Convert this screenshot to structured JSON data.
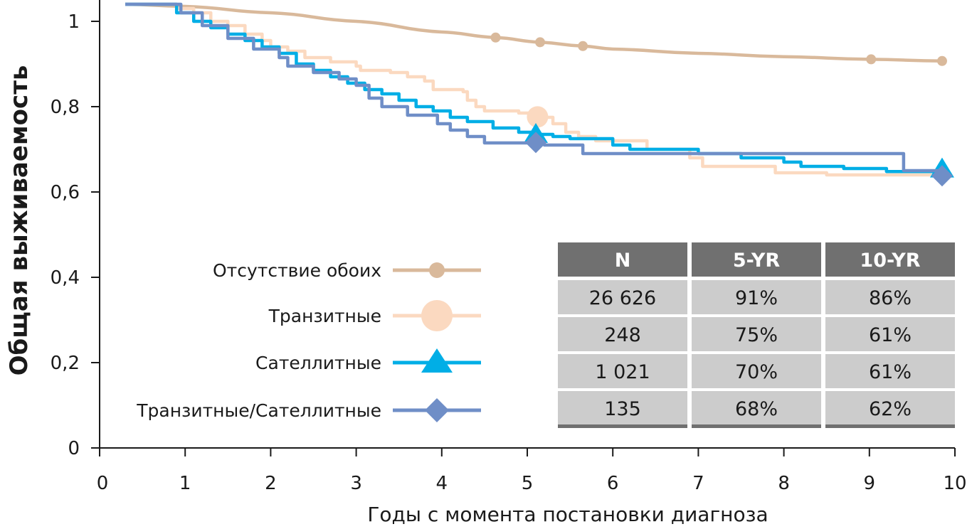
{
  "chart_data": {
    "type": "line",
    "title": "",
    "xlabel": "Годы с момента постановки диагноза",
    "ylabel": "Общая выживаемость",
    "xlim": [
      0,
      10
    ],
    "ylim": [
      0,
      1.03
    ],
    "x_ticks": [
      "0",
      "1",
      "2",
      "3",
      "4",
      "5",
      "6",
      "7",
      "8",
      "9",
      "10"
    ],
    "y_ticks": [
      {
        "value": 0,
        "label": "0"
      },
      {
        "value": 0.2,
        "label": "0,2"
      },
      {
        "value": 0.4,
        "label": "0,4"
      },
      {
        "value": 0.6,
        "label": "0,6"
      },
      {
        "value": 0.8,
        "label": "0,8"
      },
      {
        "value": 1,
        "label": "1"
      }
    ],
    "legend_position": "bottom-left",
    "series": [
      {
        "name": "Отсутствие обоих",
        "color": "#d9b99b",
        "marker": "circle-small",
        "step": false,
        "points": [
          [
            0.3,
            1.04
          ],
          [
            1,
            1.035
          ],
          [
            2,
            1.02
          ],
          [
            3,
            1.0
          ],
          [
            4,
            0.975
          ],
          [
            4.63,
            0.962
          ],
          [
            5.15,
            0.951
          ],
          [
            5.65,
            0.942
          ],
          [
            6,
            0.935
          ],
          [
            7,
            0.925
          ],
          [
            8,
            0.917
          ],
          [
            9,
            0.911
          ],
          [
            9.85,
            0.907
          ]
        ],
        "marker_points": [
          [
            4.63,
            0.962
          ],
          [
            5.15,
            0.951
          ],
          [
            5.65,
            0.942
          ],
          [
            9.02,
            0.911
          ],
          [
            9.85,
            0.907
          ]
        ]
      },
      {
        "name": "Транзитные",
        "color": "#fbd9c0",
        "marker": "circle-large",
        "step": true,
        "points": [
          [
            0.3,
            1.04
          ],
          [
            0.8,
            1.04
          ],
          [
            0.9,
            1.03
          ],
          [
            1.1,
            1.02
          ],
          [
            1.3,
            1.0
          ],
          [
            1.5,
            0.99
          ],
          [
            1.7,
            0.97
          ],
          [
            1.9,
            0.955
          ],
          [
            2.0,
            0.94
          ],
          [
            2.2,
            0.93
          ],
          [
            2.4,
            0.915
          ],
          [
            2.7,
            0.905
          ],
          [
            3.0,
            0.895
          ],
          [
            3.05,
            0.885
          ],
          [
            3.4,
            0.88
          ],
          [
            3.6,
            0.87
          ],
          [
            3.8,
            0.86
          ],
          [
            3.9,
            0.84
          ],
          [
            4.25,
            0.835
          ],
          [
            4.3,
            0.815
          ],
          [
            4.4,
            0.8
          ],
          [
            4.5,
            0.79
          ],
          [
            4.9,
            0.785
          ],
          [
            5.15,
            0.775
          ],
          [
            5.3,
            0.76
          ],
          [
            5.45,
            0.74
          ],
          [
            5.6,
            0.73
          ],
          [
            5.8,
            0.72
          ],
          [
            6.4,
            0.7
          ],
          [
            6.9,
            0.68
          ],
          [
            7.05,
            0.66
          ],
          [
            7.9,
            0.645
          ],
          [
            8.5,
            0.64
          ],
          [
            9.85,
            0.64
          ]
        ],
        "marker_points": [
          [
            5.12,
            0.776
          ]
        ]
      },
      {
        "name": "Сателлитные",
        "color": "#00aee6",
        "marker": "triangle",
        "step": true,
        "points": [
          [
            0.3,
            1.04
          ],
          [
            0.8,
            1.04
          ],
          [
            0.9,
            1.02
          ],
          [
            1.1,
            1.0
          ],
          [
            1.3,
            0.985
          ],
          [
            1.5,
            0.97
          ],
          [
            1.7,
            0.955
          ],
          [
            1.9,
            0.94
          ],
          [
            2.1,
            0.925
          ],
          [
            2.3,
            0.9
          ],
          [
            2.5,
            0.885
          ],
          [
            2.7,
            0.87
          ],
          [
            2.9,
            0.855
          ],
          [
            3.1,
            0.84
          ],
          [
            3.3,
            0.83
          ],
          [
            3.5,
            0.815
          ],
          [
            3.7,
            0.8
          ],
          [
            3.9,
            0.79
          ],
          [
            4.1,
            0.775
          ],
          [
            4.3,
            0.765
          ],
          [
            4.6,
            0.75
          ],
          [
            4.9,
            0.74
          ],
          [
            5.1,
            0.735
          ],
          [
            5.3,
            0.73
          ],
          [
            5.5,
            0.725
          ],
          [
            6.0,
            0.71
          ],
          [
            6.2,
            0.7
          ],
          [
            7.0,
            0.69
          ],
          [
            7.5,
            0.68
          ],
          [
            8.0,
            0.67
          ],
          [
            8.2,
            0.66
          ],
          [
            8.7,
            0.655
          ],
          [
            9.2,
            0.648
          ],
          [
            9.85,
            0.648
          ]
        ],
        "marker_points": [
          [
            5.1,
            0.735
          ],
          [
            9.85,
            0.654
          ]
        ]
      },
      {
        "name": "Транзитные/Сателлитные",
        "color": "#6f8ec7",
        "marker": "diamond",
        "step": true,
        "points": [
          [
            0.3,
            1.04
          ],
          [
            0.8,
            1.04
          ],
          [
            0.95,
            1.02
          ],
          [
            1.2,
            0.99
          ],
          [
            1.5,
            0.96
          ],
          [
            1.8,
            0.935
          ],
          [
            2.1,
            0.915
          ],
          [
            2.2,
            0.895
          ],
          [
            2.5,
            0.88
          ],
          [
            2.8,
            0.865
          ],
          [
            3.0,
            0.85
          ],
          [
            3.15,
            0.82
          ],
          [
            3.3,
            0.8
          ],
          [
            3.6,
            0.78
          ],
          [
            3.95,
            0.76
          ],
          [
            4.1,
            0.745
          ],
          [
            4.3,
            0.73
          ],
          [
            4.5,
            0.715
          ],
          [
            5.2,
            0.71
          ],
          [
            5.65,
            0.69
          ],
          [
            6.1,
            0.69
          ],
          [
            9.3,
            0.69
          ],
          [
            9.4,
            0.65
          ],
          [
            9.85,
            0.65
          ]
        ],
        "marker_points": [
          [
            5.1,
            0.716
          ],
          [
            9.85,
            0.638
          ]
        ]
      }
    ],
    "table": {
      "headers": [
        "N",
        "5-YR",
        "10-YR"
      ],
      "rows": [
        [
          "26 626",
          "91%",
          "86%"
        ],
        [
          "248",
          "75%",
          "61%"
        ],
        [
          "1 021",
          "70%",
          "61%"
        ],
        [
          "135",
          "68%",
          "62%"
        ]
      ],
      "header_color": "#707070",
      "cell_color": "#cccccc"
    }
  }
}
